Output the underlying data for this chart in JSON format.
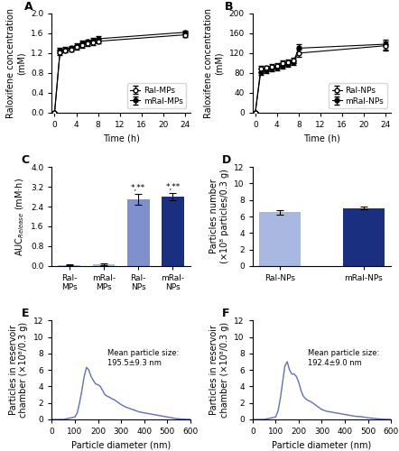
{
  "panel_A": {
    "time": [
      0,
      1,
      2,
      3,
      4,
      5,
      6,
      7,
      8,
      24
    ],
    "ral_mps": [
      0.0,
      1.22,
      1.25,
      1.28,
      1.32,
      1.36,
      1.39,
      1.41,
      1.44,
      1.57
    ],
    "ral_mps_err": [
      0.0,
      0.05,
      0.04,
      0.04,
      0.04,
      0.05,
      0.04,
      0.04,
      0.05,
      0.04
    ],
    "mral_mps": [
      0.0,
      1.25,
      1.28,
      1.31,
      1.35,
      1.4,
      1.43,
      1.46,
      1.49,
      1.62
    ],
    "mral_mps_err": [
      0.0,
      0.05,
      0.04,
      0.04,
      0.04,
      0.06,
      0.05,
      0.05,
      0.06,
      0.04
    ],
    "ylabel": "Raloxifene concentration\n(mM)",
    "xlabel": "Time (h)",
    "ylim": [
      0,
      2.0
    ],
    "yticks": [
      0.0,
      0.4,
      0.8,
      1.2,
      1.6,
      2.0
    ],
    "xticks": [
      0,
      4,
      8,
      12,
      16,
      20,
      24
    ],
    "legend": [
      "Ral-MPs",
      "mRal-MPs"
    ]
  },
  "panel_B": {
    "time": [
      0,
      1,
      2,
      3,
      4,
      5,
      6,
      7,
      8,
      24
    ],
    "ral_nps": [
      0.0,
      88,
      90,
      93,
      95,
      100,
      102,
      105,
      120,
      135
    ],
    "ral_nps_err": [
      0.0,
      6,
      5,
      5,
      5,
      6,
      5,
      5,
      7,
      9
    ],
    "mral_nps": [
      0.0,
      82,
      85,
      88,
      91,
      95,
      98,
      102,
      130,
      138
    ],
    "mral_nps_err": [
      0.0,
      6,
      5,
      5,
      5,
      6,
      5,
      5,
      8,
      10
    ],
    "ylabel": "Raloxifene concentration\n(mM)",
    "xlabel": "Time (h)",
    "ylim": [
      0,
      200
    ],
    "yticks": [
      0,
      40,
      80,
      120,
      160,
      200
    ],
    "xticks": [
      0,
      4,
      8,
      12,
      16,
      20,
      24
    ],
    "legend": [
      "Ral-NPs",
      "mRal-NPs"
    ]
  },
  "panel_C": {
    "categories": [
      "Ral-\nMPs",
      "mRal-\nMPs",
      "Ral-\nNPs",
      "mRal-\nNPs"
    ],
    "values": [
      0.04,
      0.07,
      2.68,
      2.8
    ],
    "errors": [
      0.02,
      0.03,
      0.22,
      0.13
    ],
    "colors": [
      "#a8b8e0",
      "#a8b8e0",
      "#8090cc",
      "#1a2f80"
    ],
    "ylabel": "AUC$_{Release}$ (mM·h)",
    "ylim": [
      0,
      4.0
    ],
    "yticks": [
      0.0,
      0.8,
      1.6,
      2.4,
      3.2,
      4.0
    ],
    "significance": [
      "",
      "",
      "*,**",
      "*,**"
    ]
  },
  "panel_D": {
    "categories": [
      "Ral-NPs",
      "mRal-NPs"
    ],
    "values": [
      6.5,
      7.0
    ],
    "errors": [
      0.3,
      0.15
    ],
    "colors": [
      "#a8b8e0",
      "#1a2f80"
    ],
    "ylabel": "Particles number\n(×10⁸ particles/0.3 g)",
    "ylim": [
      0,
      12
    ],
    "yticks": [
      0,
      2,
      4,
      6,
      8,
      10,
      12
    ]
  },
  "panel_E": {
    "x": [
      0,
      50,
      100,
      110,
      120,
      130,
      140,
      150,
      160,
      170,
      180,
      190,
      200,
      210,
      220,
      230,
      240,
      250,
      260,
      270,
      280,
      290,
      300,
      320,
      340,
      360,
      380,
      400,
      420,
      440,
      460,
      480,
      500,
      520,
      540,
      560,
      580,
      600
    ],
    "y": [
      0,
      0,
      0.3,
      0.8,
      2.0,
      3.5,
      5.2,
      6.3,
      6.0,
      5.2,
      4.7,
      4.3,
      4.2,
      4.0,
      3.5,
      3.0,
      2.8,
      2.7,
      2.5,
      2.4,
      2.2,
      2.0,
      1.8,
      1.5,
      1.3,
      1.1,
      0.9,
      0.8,
      0.7,
      0.6,
      0.5,
      0.4,
      0.3,
      0.2,
      0.1,
      0.05,
      0.02,
      0
    ],
    "xlabel": "Particle diameter (nm)",
    "ylabel": "Particles in reservoir\nchamber (×10⁸/0.3 g)",
    "ylim": [
      0,
      12
    ],
    "yticks": [
      0,
      2,
      4,
      6,
      8,
      10,
      12
    ],
    "xticks": [
      0,
      100,
      200,
      300,
      400,
      500,
      600
    ],
    "annotation": "Mean particle size:\n195.5±9.3 nm",
    "line_color": "#6070b8"
  },
  "panel_F": {
    "x": [
      0,
      50,
      100,
      110,
      120,
      130,
      140,
      150,
      160,
      170,
      180,
      190,
      200,
      210,
      220,
      230,
      240,
      250,
      260,
      270,
      280,
      290,
      300,
      320,
      340,
      360,
      380,
      400,
      420,
      440,
      460,
      480,
      500,
      520,
      540,
      560,
      580,
      600
    ],
    "y": [
      0,
      0,
      0.3,
      1.0,
      2.5,
      4.5,
      6.5,
      7.0,
      6.0,
      5.5,
      5.5,
      5.2,
      4.5,
      3.5,
      2.8,
      2.5,
      2.3,
      2.2,
      2.0,
      1.8,
      1.6,
      1.4,
      1.2,
      1.0,
      0.9,
      0.8,
      0.7,
      0.6,
      0.5,
      0.4,
      0.35,
      0.3,
      0.2,
      0.15,
      0.08,
      0.04,
      0.01,
      0
    ],
    "xlabel": "Particle diameter (nm)",
    "ylabel": "Particles in reservoir\nchamber (×10⁸/0.3 g)",
    "ylim": [
      0,
      12
    ],
    "yticks": [
      0,
      2,
      4,
      6,
      8,
      10,
      12
    ],
    "xticks": [
      0,
      100,
      200,
      300,
      400,
      500,
      600
    ],
    "annotation": "Mean particle size:\n192.4±9.0 nm",
    "line_color": "#6070b8"
  },
  "panel_labels_fontsize": 9,
  "tick_fontsize": 6.5,
  "label_fontsize": 7,
  "legend_fontsize": 6.5
}
